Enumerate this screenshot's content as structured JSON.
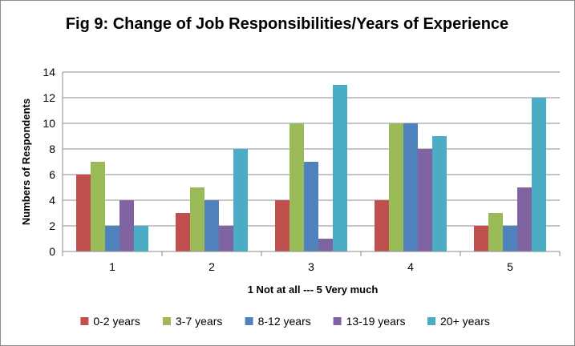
{
  "chart_data": {
    "type": "bar",
    "title": "Fig 9: Change of Job Responsibilities/Years of Experience",
    "xlabel": "1 Not at all --- 5 Very much",
    "ylabel": "Numbers of Respondents",
    "categories": [
      "1",
      "2",
      "3",
      "4",
      "5"
    ],
    "ylim": [
      0,
      14
    ],
    "yticks": [
      0,
      2,
      4,
      6,
      8,
      10,
      12,
      14
    ],
    "grid": true,
    "legend_position": "bottom",
    "series": [
      {
        "name": "0-2 years",
        "color": "#c0504d",
        "values": [
          6,
          3,
          4,
          4,
          2
        ]
      },
      {
        "name": "3-7 years",
        "color": "#9bbb59",
        "values": [
          7,
          5,
          10,
          10,
          3
        ]
      },
      {
        "name": "8-12 years",
        "color": "#4f81bd",
        "values": [
          2,
          4,
          7,
          10,
          2
        ]
      },
      {
        "name": "13-19 years",
        "color": "#8064a2",
        "values": [
          4,
          2,
          1,
          8,
          5
        ]
      },
      {
        "name": "20+ years",
        "color": "#4bacc6",
        "values": [
          2,
          8,
          13,
          9,
          12
        ]
      }
    ]
  }
}
